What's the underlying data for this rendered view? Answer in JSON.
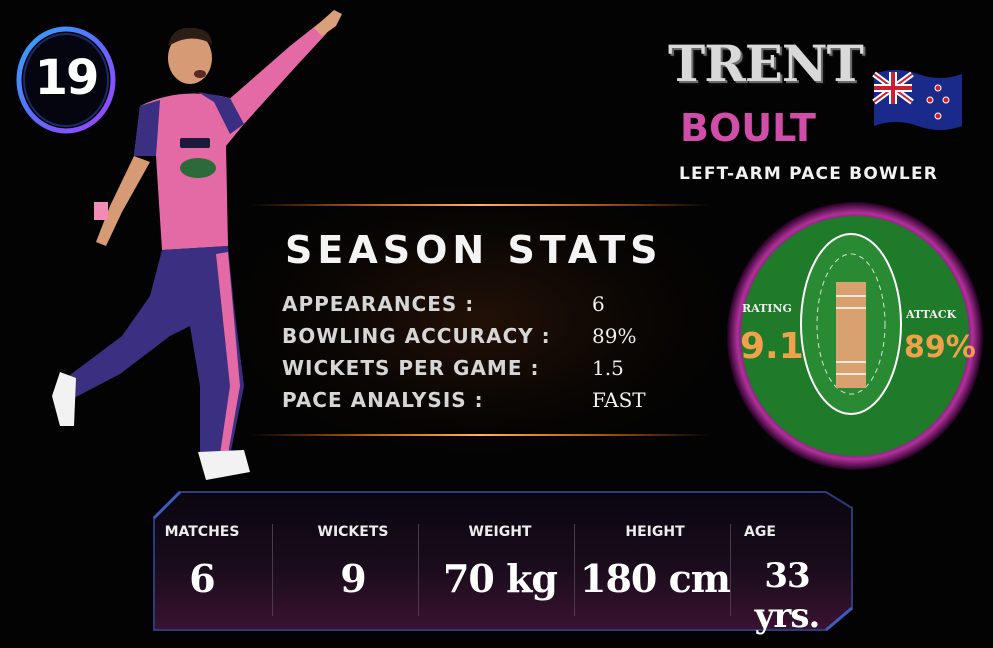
{
  "player": {
    "jersey_number": "19",
    "first_name": "TRENT",
    "last_name": "BOULT",
    "role": "LEFT-ARM PACE BOWLER"
  },
  "season_stats": {
    "title": "SEASON STATS",
    "rows": [
      {
        "label": "APPEARANCES :",
        "value": "6"
      },
      {
        "label": "BOWLING ACCURACY :",
        "value": "89%"
      },
      {
        "label": "WICKETS PER GAME :",
        "value": "1.5"
      },
      {
        "label": "PACE ANALYSIS :",
        "value": "FAST"
      }
    ]
  },
  "ratings": {
    "rating_label": "RATING",
    "rating_value": "9.1",
    "attack_label": "ATTACK",
    "attack_value": "89%"
  },
  "bottom_stats": [
    {
      "label": "MATCHES",
      "value": "6"
    },
    {
      "label": "WICKETS",
      "value": "9"
    },
    {
      "label": "WEIGHT",
      "value": "70 kg"
    },
    {
      "label": "HEIGHT",
      "value": "180 cm"
    },
    {
      "label": "AGE",
      "value": "33 yrs."
    }
  ],
  "colors": {
    "background": "#030303",
    "jersey_pink": "#e46aa5",
    "jersey_navy": "#3b2f82",
    "last_name_pink": "#d04da8",
    "rating_orange": "#f0a14a",
    "field_green": "#1f7a2a",
    "badge_ring_blue": "#2fa8ff",
    "badge_ring_purple": "#a040ff"
  },
  "icons": {
    "flag": "new-zealand-flag-icon",
    "pitch": "cricket-pitch-icon"
  }
}
